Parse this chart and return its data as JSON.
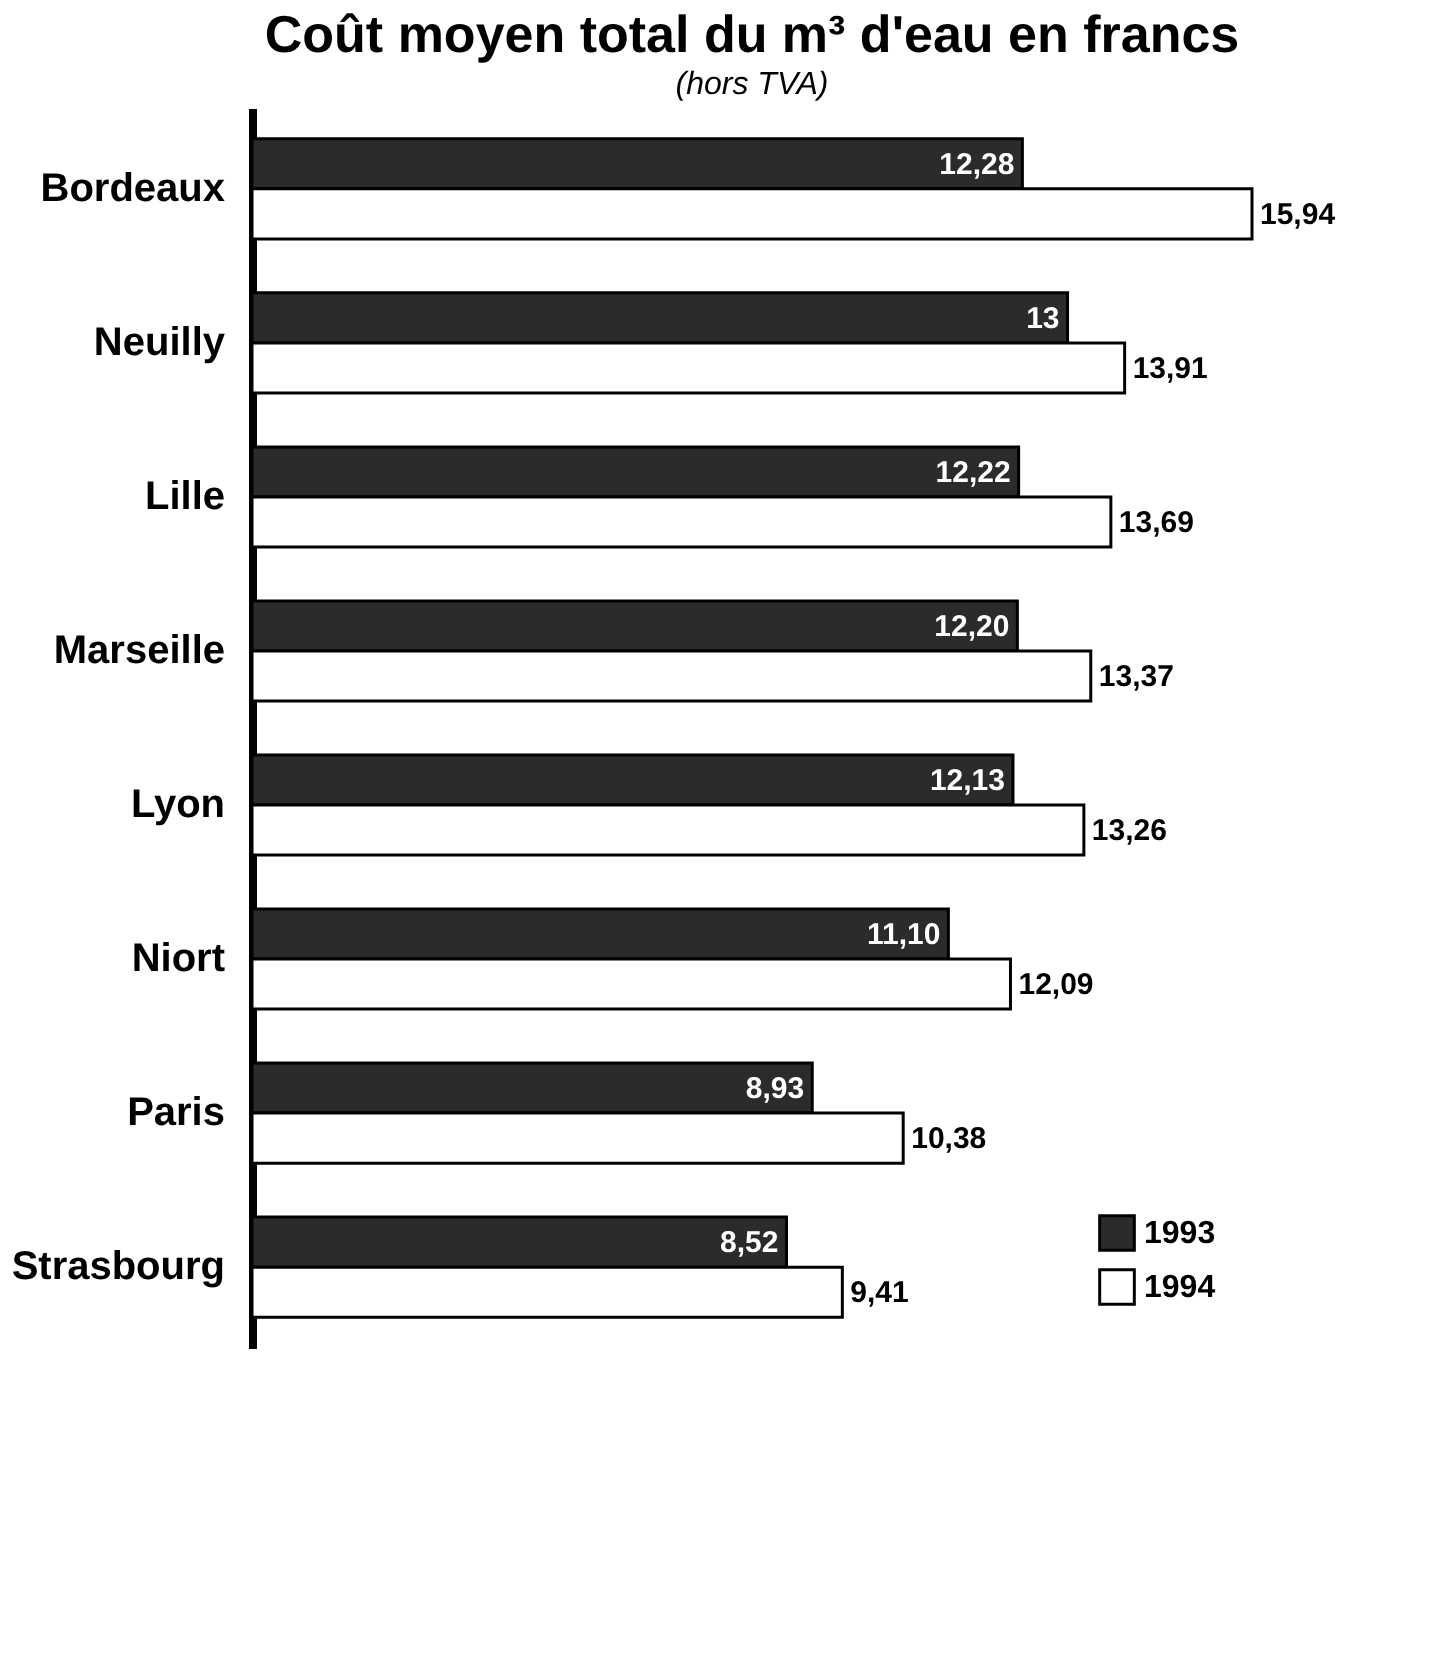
{
  "chart_data": {
    "type": "bar",
    "orientation": "horizontal",
    "title": "Coût moyen total du m³ d'eau en francs",
    "subtitle": "(hors TVA)",
    "categories": [
      "Bordeaux",
      "Neuilly",
      "Lille",
      "Marseille",
      "Lyon",
      "Niort",
      "Paris",
      "Strasbourg"
    ],
    "series": [
      {
        "name": "1993",
        "color": "#2b2b2b",
        "values": [
          12.28,
          13,
          12.22,
          12.2,
          12.13,
          11.1,
          8.93,
          8.52
        ],
        "value_labels": [
          "12,28",
          "13",
          "12,22",
          "12,20",
          "12,13",
          "11,10",
          "8,93",
          "8,52"
        ]
      },
      {
        "name": "1994",
        "color": "#ffffff",
        "values": [
          15.94,
          13.91,
          13.69,
          13.37,
          13.26,
          12.09,
          10.38,
          9.41
        ],
        "value_labels": [
          "15,94",
          "13,91",
          "13,69",
          "13,37",
          "13,26",
          "12,09",
          "10,38",
          "9,41"
        ]
      }
    ],
    "legend": "bottom right"
  }
}
